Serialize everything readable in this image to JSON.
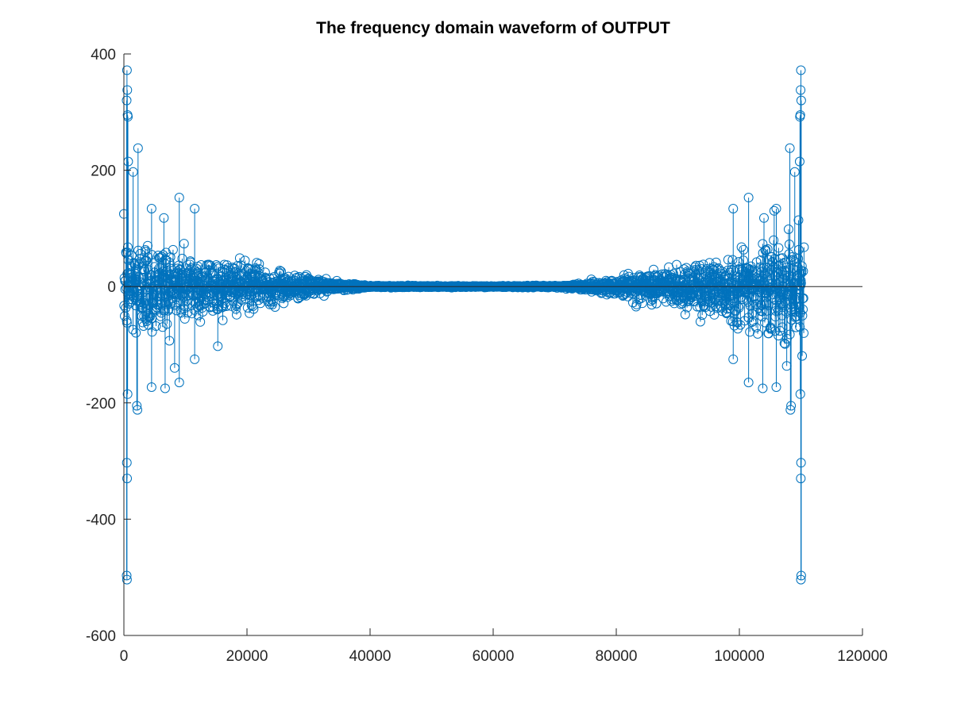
{
  "chart_data": {
    "type": "stem",
    "title": "The frequency domain waveform of OUTPUT",
    "xlabel": "",
    "ylabel": "",
    "xlim": [
      0,
      120000
    ],
    "ylim": [
      -600,
      400
    ],
    "xticks": [
      0,
      20000,
      40000,
      60000,
      80000,
      100000,
      120000
    ],
    "yticks": [
      -600,
      -400,
      -200,
      0,
      200,
      400
    ],
    "xtick_labels": [
      "0",
      "20000",
      "40000",
      "60000",
      "80000",
      "100000",
      "120000"
    ],
    "ytick_labels": [
      "-600",
      "-400",
      "-200",
      "0",
      "200",
      "400"
    ],
    "grid": false,
    "legend": "none",
    "series_color": "#0072bd",
    "baseline_value": 0,
    "signal_length": 110500,
    "symmetric_about": 55250,
    "envelope": {
      "description": "amplitude spread decays from ~±100 near x=0 to ~±3 by x=38000; mirrored near x=110500",
      "x": [
        0,
        5000,
        10000,
        15000,
        20000,
        25000,
        30000,
        35000,
        40000,
        55250
      ],
      "amplitude": [
        100,
        90,
        70,
        55,
        42,
        30,
        18,
        7,
        2,
        1
      ]
    },
    "outliers": [
      {
        "x": 500,
        "y": 372
      },
      {
        "x": 550,
        "y": 338
      },
      {
        "x": 450,
        "y": 320
      },
      {
        "x": 600,
        "y": 295
      },
      {
        "x": 650,
        "y": 292
      },
      {
        "x": 700,
        "y": 215
      },
      {
        "x": 2300,
        "y": 238
      },
      {
        "x": 1500,
        "y": 197
      },
      {
        "x": 9000,
        "y": 153
      },
      {
        "x": 11500,
        "y": 134
      },
      {
        "x": 4500,
        "y": 134
      },
      {
        "x": 6500,
        "y": 118
      },
      {
        "x": 500,
        "y": -504
      },
      {
        "x": 450,
        "y": -497
      },
      {
        "x": 520,
        "y": -330
      },
      {
        "x": 480,
        "y": -303
      },
      {
        "x": 2200,
        "y": -212
      },
      {
        "x": 2100,
        "y": -205
      },
      {
        "x": 600,
        "y": -185
      },
      {
        "x": 6700,
        "y": -175
      },
      {
        "x": 4500,
        "y": -173
      },
      {
        "x": 9000,
        "y": -165
      },
      {
        "x": 11500,
        "y": -125
      }
    ]
  }
}
